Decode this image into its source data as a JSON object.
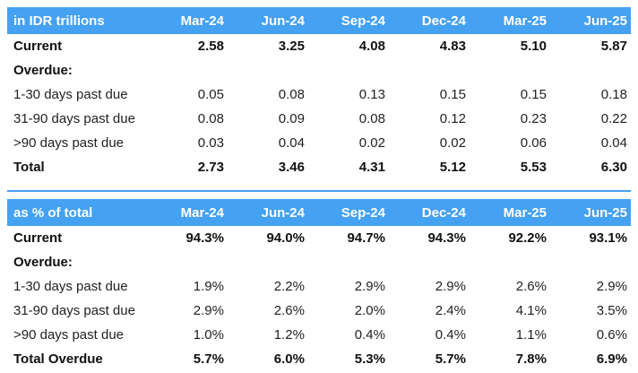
{
  "colors": {
    "header_bg": "#45a1f1",
    "header_text": "#ffffff",
    "body_text": "#1f1f1f",
    "divider": "#45a1f1"
  },
  "columns": [
    "Mar-24",
    "Jun-24",
    "Sep-24",
    "Dec-24",
    "Mar-25",
    "Jun-25"
  ],
  "tables": [
    {
      "title": "in IDR trillions",
      "rows": [
        {
          "label": "Current",
          "bold": true,
          "values": [
            "2.58",
            "3.25",
            "4.08",
            "4.83",
            "5.10",
            "5.87"
          ]
        },
        {
          "label": "Overdue:",
          "bold": true,
          "values": [
            "",
            "",
            "",
            "",
            "",
            ""
          ]
        },
        {
          "label": "1-30 days past due",
          "bold": false,
          "values": [
            "0.05",
            "0.08",
            "0.13",
            "0.15",
            "0.15",
            "0.18"
          ]
        },
        {
          "label": "31-90 days past due",
          "bold": false,
          "values": [
            "0.08",
            "0.09",
            "0.08",
            "0.12",
            "0.23",
            "0.22"
          ]
        },
        {
          "label": ">90 days past due",
          "bold": false,
          "values": [
            "0.03",
            "0.04",
            "0.02",
            "0.02",
            "0.06",
            "0.04"
          ]
        },
        {
          "label": "Total",
          "bold": true,
          "values": [
            "2.73",
            "3.46",
            "4.31",
            "5.12",
            "5.53",
            "6.30"
          ]
        }
      ]
    },
    {
      "title": "as % of total",
      "rows": [
        {
          "label": "Current",
          "bold": true,
          "values": [
            "94.3%",
            "94.0%",
            "94.7%",
            "94.3%",
            "92.2%",
            "93.1%"
          ]
        },
        {
          "label": "Overdue:",
          "bold": true,
          "values": [
            "",
            "",
            "",
            "",
            "",
            ""
          ]
        },
        {
          "label": "1-30 days past due",
          "bold": false,
          "values": [
            "1.9%",
            "2.2%",
            "2.9%",
            "2.9%",
            "2.6%",
            "2.9%"
          ]
        },
        {
          "label": "31-90 days past due",
          "bold": false,
          "values": [
            "2.9%",
            "2.6%",
            "2.0%",
            "2.4%",
            "4.1%",
            "3.5%"
          ]
        },
        {
          "label": ">90 days past due",
          "bold": false,
          "values": [
            "1.0%",
            "1.2%",
            "0.4%",
            "0.4%",
            "1.1%",
            "0.6%"
          ]
        },
        {
          "label": "Total Overdue",
          "bold": true,
          "values": [
            "5.7%",
            "6.0%",
            "5.3%",
            "5.7%",
            "7.8%",
            "6.9%"
          ]
        }
      ]
    }
  ]
}
